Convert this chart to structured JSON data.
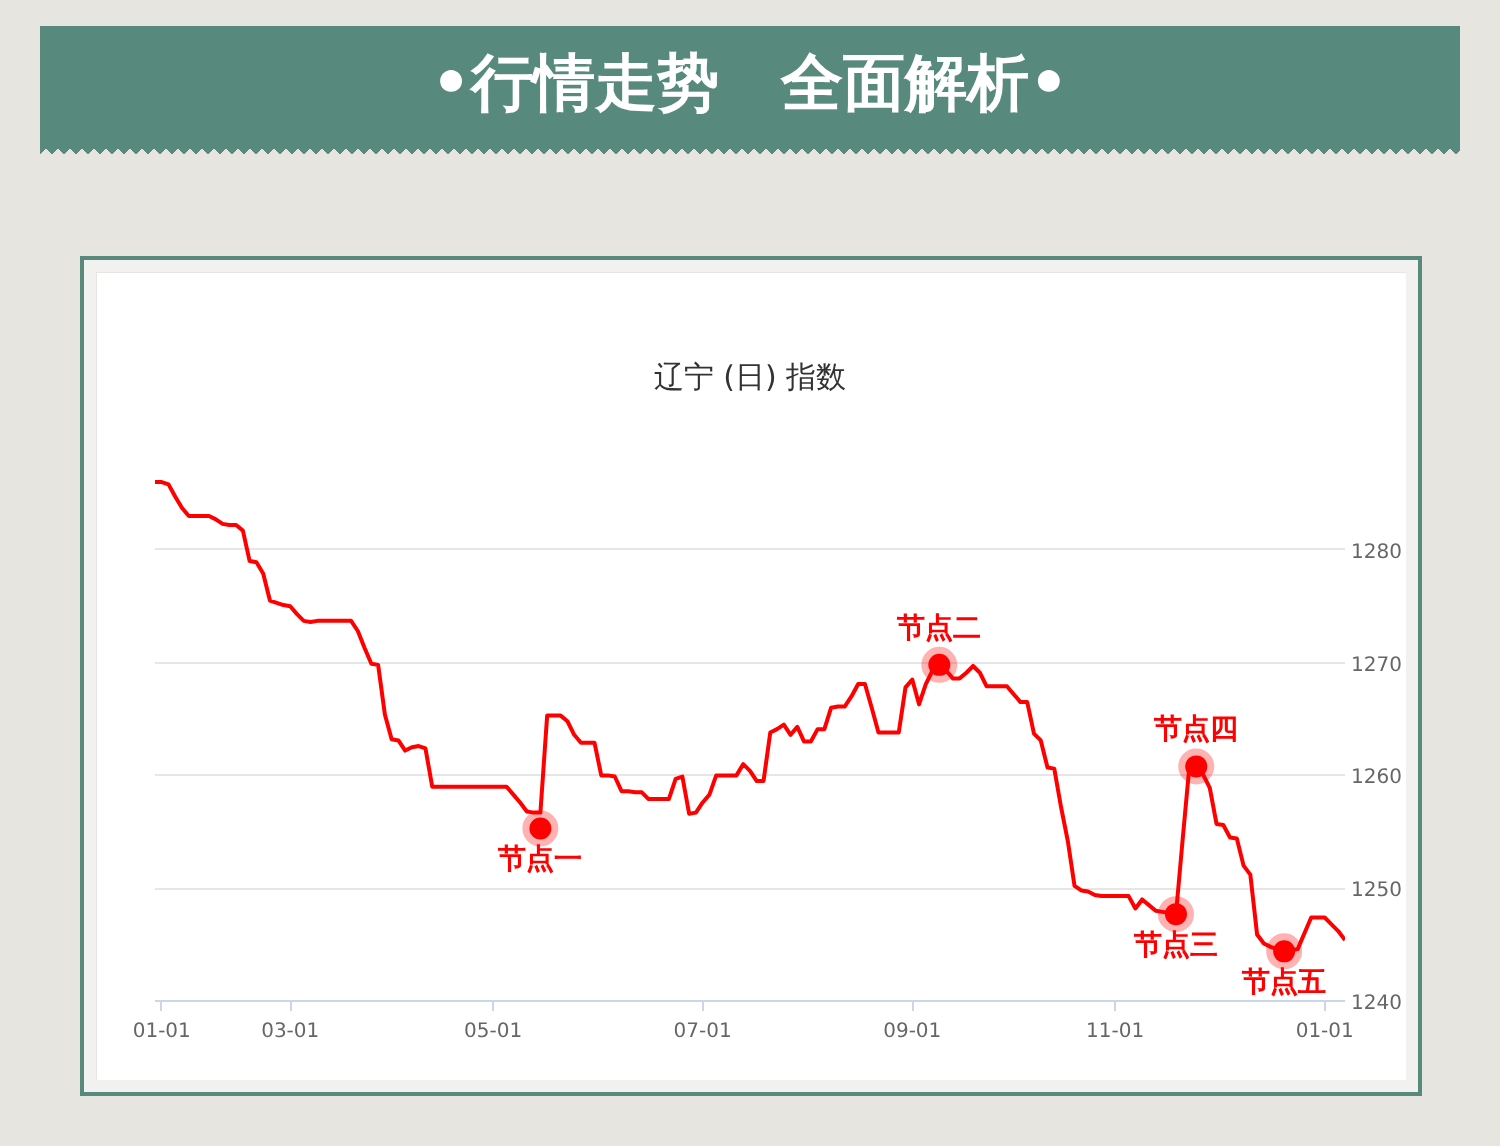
{
  "chart_data": {
    "type": "line",
    "title": "•行情走势　全面解析•",
    "subtitle": "辽宁 (日) 指数",
    "categories": [
      null,
      "01-01",
      null,
      null,
      null,
      null,
      null,
      null,
      null,
      null,
      null,
      null,
      null,
      null,
      null,
      null,
      null,
      null,
      null,
      null,
      "03-01",
      null,
      null,
      null,
      null,
      null,
      null,
      null,
      null,
      null,
      null,
      null,
      null,
      null,
      null,
      null,
      null,
      null,
      null,
      null,
      null,
      null,
      null,
      null,
      null,
      null,
      null,
      null,
      null,
      null,
      "05-01",
      null,
      null,
      null,
      null,
      null,
      null,
      null,
      null,
      null,
      null,
      null,
      null,
      null,
      null,
      null,
      null,
      null,
      null,
      null,
      null,
      null,
      null,
      null,
      null,
      null,
      null,
      null,
      null,
      null,
      null,
      "07-01",
      null,
      null,
      null,
      null,
      null,
      null,
      null,
      null,
      null,
      null,
      null,
      null,
      null,
      null,
      null,
      null,
      null,
      null,
      null,
      null,
      null,
      null,
      null,
      null,
      null,
      null,
      null,
      null,
      null,
      null,
      "09-01",
      null,
      null,
      null,
      null,
      null,
      null,
      null,
      null,
      null,
      null,
      null,
      null,
      null,
      null,
      null,
      null,
      null,
      null,
      null,
      null,
      null,
      null,
      null,
      null,
      null,
      null,
      null,
      null,
      null,
      "11-01",
      null,
      null,
      null,
      null,
      null,
      null,
      null,
      null,
      null,
      null,
      null,
      null,
      null,
      null,
      null,
      null,
      null,
      null,
      null,
      null,
      null,
      null,
      null,
      null,
      null,
      null,
      null,
      null,
      null,
      null,
      "01-01",
      null,
      null,
      null
    ],
    "series": [
      {
        "color": "#ff0000",
        "values": [
          1286.0,
          1286.0,
          1285.8,
          1284.7,
          1283.7,
          1283.0,
          1283.0,
          1283.0,
          1283.0,
          1282.7,
          1282.3,
          1282.2,
          1282.2,
          1281.7,
          1279.0,
          1278.9,
          1277.9,
          1275.5,
          1275.3,
          1275.1,
          1275.0,
          1274.3,
          1273.7,
          1273.6,
          1273.7,
          1273.7,
          1273.7,
          1273.7,
          1273.7,
          1273.7,
          1272.8,
          1271.3,
          1269.9,
          1269.8,
          1265.4,
          1263.2,
          1263.1,
          1262.2,
          1262.5,
          1262.6,
          1262.4,
          1259.0,
          1259.0,
          1259.0,
          1259.0,
          1259.0,
          1259.0,
          1259.0,
          1259.0,
          1259.0,
          1259.0,
          1259.0,
          1259.0,
          1258.3,
          1257.6,
          1256.8,
          1256.7,
          1256.7,
          1265.3,
          1265.3,
          1265.3,
          1264.8,
          1263.6,
          1262.9,
          1262.9,
          1262.9,
          1260.0,
          1260.0,
          1259.9,
          1258.6,
          1258.6,
          1258.5,
          1258.5,
          1257.9,
          1257.9,
          1257.9,
          1257.9,
          1259.7,
          1259.9,
          1256.6,
          1256.7,
          1257.6,
          1258.3,
          1260.0,
          1260.0,
          1260.0,
          1260.0,
          1261.0,
          1260.4,
          1259.5,
          1259.5,
          1263.8,
          1264.1,
          1264.5,
          1263.6,
          1264.3,
          1263.0,
          1263.0,
          1264.1,
          1264.1,
          1266.0,
          1266.1,
          1266.1,
          1267.0,
          1268.1,
          1268.1,
          1266.0,
          1263.8,
          1263.8,
          1263.8,
          1263.8,
          1267.8,
          1268.5,
          1266.3,
          1268.1,
          1269.3,
          1269.8,
          1269.3,
          1268.6,
          1268.6,
          1269.1,
          1269.7,
          1269.1,
          1267.9,
          1267.9,
          1267.9,
          1267.9,
          1267.2,
          1266.5,
          1266.5,
          1263.7,
          1263.1,
          1260.7,
          1260.6,
          1257.2,
          1254.2,
          1250.2,
          1249.8,
          1249.7,
          1249.4,
          1249.3,
          1249.3,
          1249.3,
          1249.3,
          1249.3,
          1248.2,
          1249.0,
          1248.5,
          1248.0,
          1247.9,
          1247.8,
          1247.7,
          1254.4,
          1260.9,
          1260.8,
          1260.1,
          1258.9,
          1255.7,
          1255.6,
          1254.5,
          1254.4,
          1252.0,
          1251.2,
          1245.9,
          1245.1,
          1244.8,
          1244.6,
          1244.5,
          1244.5,
          1244.6,
          1246.0,
          1247.4,
          1247.4,
          1247.4,
          1246.8,
          1246.2,
          1245.4
        ]
      },
      {
        "type": "scatter",
        "color": "#ff0000",
        "values": [
          null,
          null,
          null,
          null,
          null,
          null,
          null,
          null,
          null,
          null,
          null,
          null,
          null,
          null,
          null,
          null,
          null,
          null,
          null,
          null,
          null,
          null,
          null,
          null,
          null,
          null,
          null,
          null,
          null,
          null,
          null,
          null,
          null,
          null,
          null,
          null,
          null,
          null,
          null,
          null,
          null,
          null,
          null,
          null,
          null,
          null,
          null,
          null,
          null,
          null,
          null,
          null,
          null,
          null,
          null,
          null,
          null,
          1255.3,
          null,
          null,
          null,
          null,
          null,
          null,
          null,
          null,
          null,
          null,
          null,
          null,
          null,
          null,
          null,
          null,
          null,
          null,
          null,
          null,
          null,
          null,
          null,
          null,
          null,
          null,
          null,
          null,
          null,
          null,
          null,
          null,
          null,
          null,
          null,
          null,
          null,
          null,
          null,
          null,
          null,
          null,
          null,
          null,
          null,
          null,
          null,
          null,
          null,
          null,
          null,
          null,
          null,
          null,
          null,
          null,
          null,
          null,
          1269.8,
          null,
          null,
          null,
          null,
          null,
          null,
          null,
          null,
          null,
          null,
          null,
          null,
          null,
          null,
          null,
          null,
          null,
          null,
          null,
          null,
          null,
          null,
          null,
          null,
          null,
          null,
          null,
          null,
          null,
          null,
          null,
          null,
          null,
          null,
          1247.7,
          null,
          null,
          1260.8,
          null,
          null,
          null,
          null,
          null,
          null,
          null,
          null,
          null,
          null,
          null,
          null,
          1244.4,
          null,
          null,
          null,
          null,
          null,
          null,
          null,
          null,
          null
        ]
      }
    ],
    "annotations": [
      {
        "text": "节点一",
        "y": 1255.3
      },
      {
        "text": "节点二",
        "y": 1269.8
      },
      {
        "text": "节点三",
        "y": 1247.7
      },
      {
        "text": "节点四",
        "y": 1260.8
      },
      {
        "text": "节点五",
        "y": 1244.4
      }
    ],
    "ylim": [
      1240,
      1290
    ],
    "yticks": [
      1240,
      1250,
      1260,
      1270,
      1280,
      {
        "value": 1290,
        "label": null
      }
    ],
    "grid": "y"
  }
}
